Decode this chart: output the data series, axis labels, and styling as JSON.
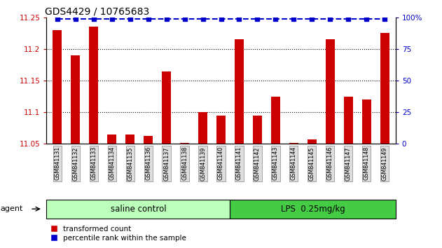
{
  "title": "GDS4429 / 10765683",
  "samples": [
    "GSM841131",
    "GSM841132",
    "GSM841133",
    "GSM841134",
    "GSM841135",
    "GSM841136",
    "GSM841137",
    "GSM841138",
    "GSM841139",
    "GSM841140",
    "GSM841141",
    "GSM841142",
    "GSM841143",
    "GSM841144",
    "GSM841145",
    "GSM841146",
    "GSM841147",
    "GSM841148",
    "GSM841149"
  ],
  "red_values": [
    11.23,
    11.19,
    11.235,
    11.065,
    11.065,
    11.062,
    11.165,
    11.052,
    11.1,
    11.095,
    11.215,
    11.095,
    11.125,
    11.052,
    11.057,
    11.215,
    11.125,
    11.12,
    11.225
  ],
  "blue_values": [
    99,
    99,
    99,
    99,
    99,
    99,
    99,
    99,
    99,
    99,
    99,
    99,
    99,
    99,
    99,
    99,
    99,
    99,
    99
  ],
  "ylim_left": [
    11.05,
    11.25
  ],
  "ylim_right": [
    0,
    100
  ],
  "yticks_left": [
    11.05,
    11.1,
    11.15,
    11.2,
    11.25
  ],
  "ytick_labels_left": [
    "11.05",
    "11.1",
    "11.15",
    "11.2",
    "11.25"
  ],
  "yticks_right": [
    0,
    25,
    50,
    75,
    100
  ],
  "ytick_labels_right": [
    "0",
    "25",
    "50",
    "75",
    "100%"
  ],
  "group1_label": "saline control",
  "group2_label": "LPS  0.25mg/kg",
  "group1_count": 10,
  "group2_count": 9,
  "agent_label": "agent",
  "bar_color": "#cc0000",
  "dot_color": "#0000cc",
  "group1_bg": "#bbffbb",
  "group2_bg": "#44cc44",
  "bar_base": 11.05,
  "legend_red": "transformed count",
  "legend_blue": "percentile rank within the sample",
  "grid_color": "black",
  "title_fontsize": 10,
  "axis_label_color_left": "#cc0000",
  "axis_label_color_right": "#0000cc",
  "blue_line_pct": 99,
  "bar_width": 0.5
}
